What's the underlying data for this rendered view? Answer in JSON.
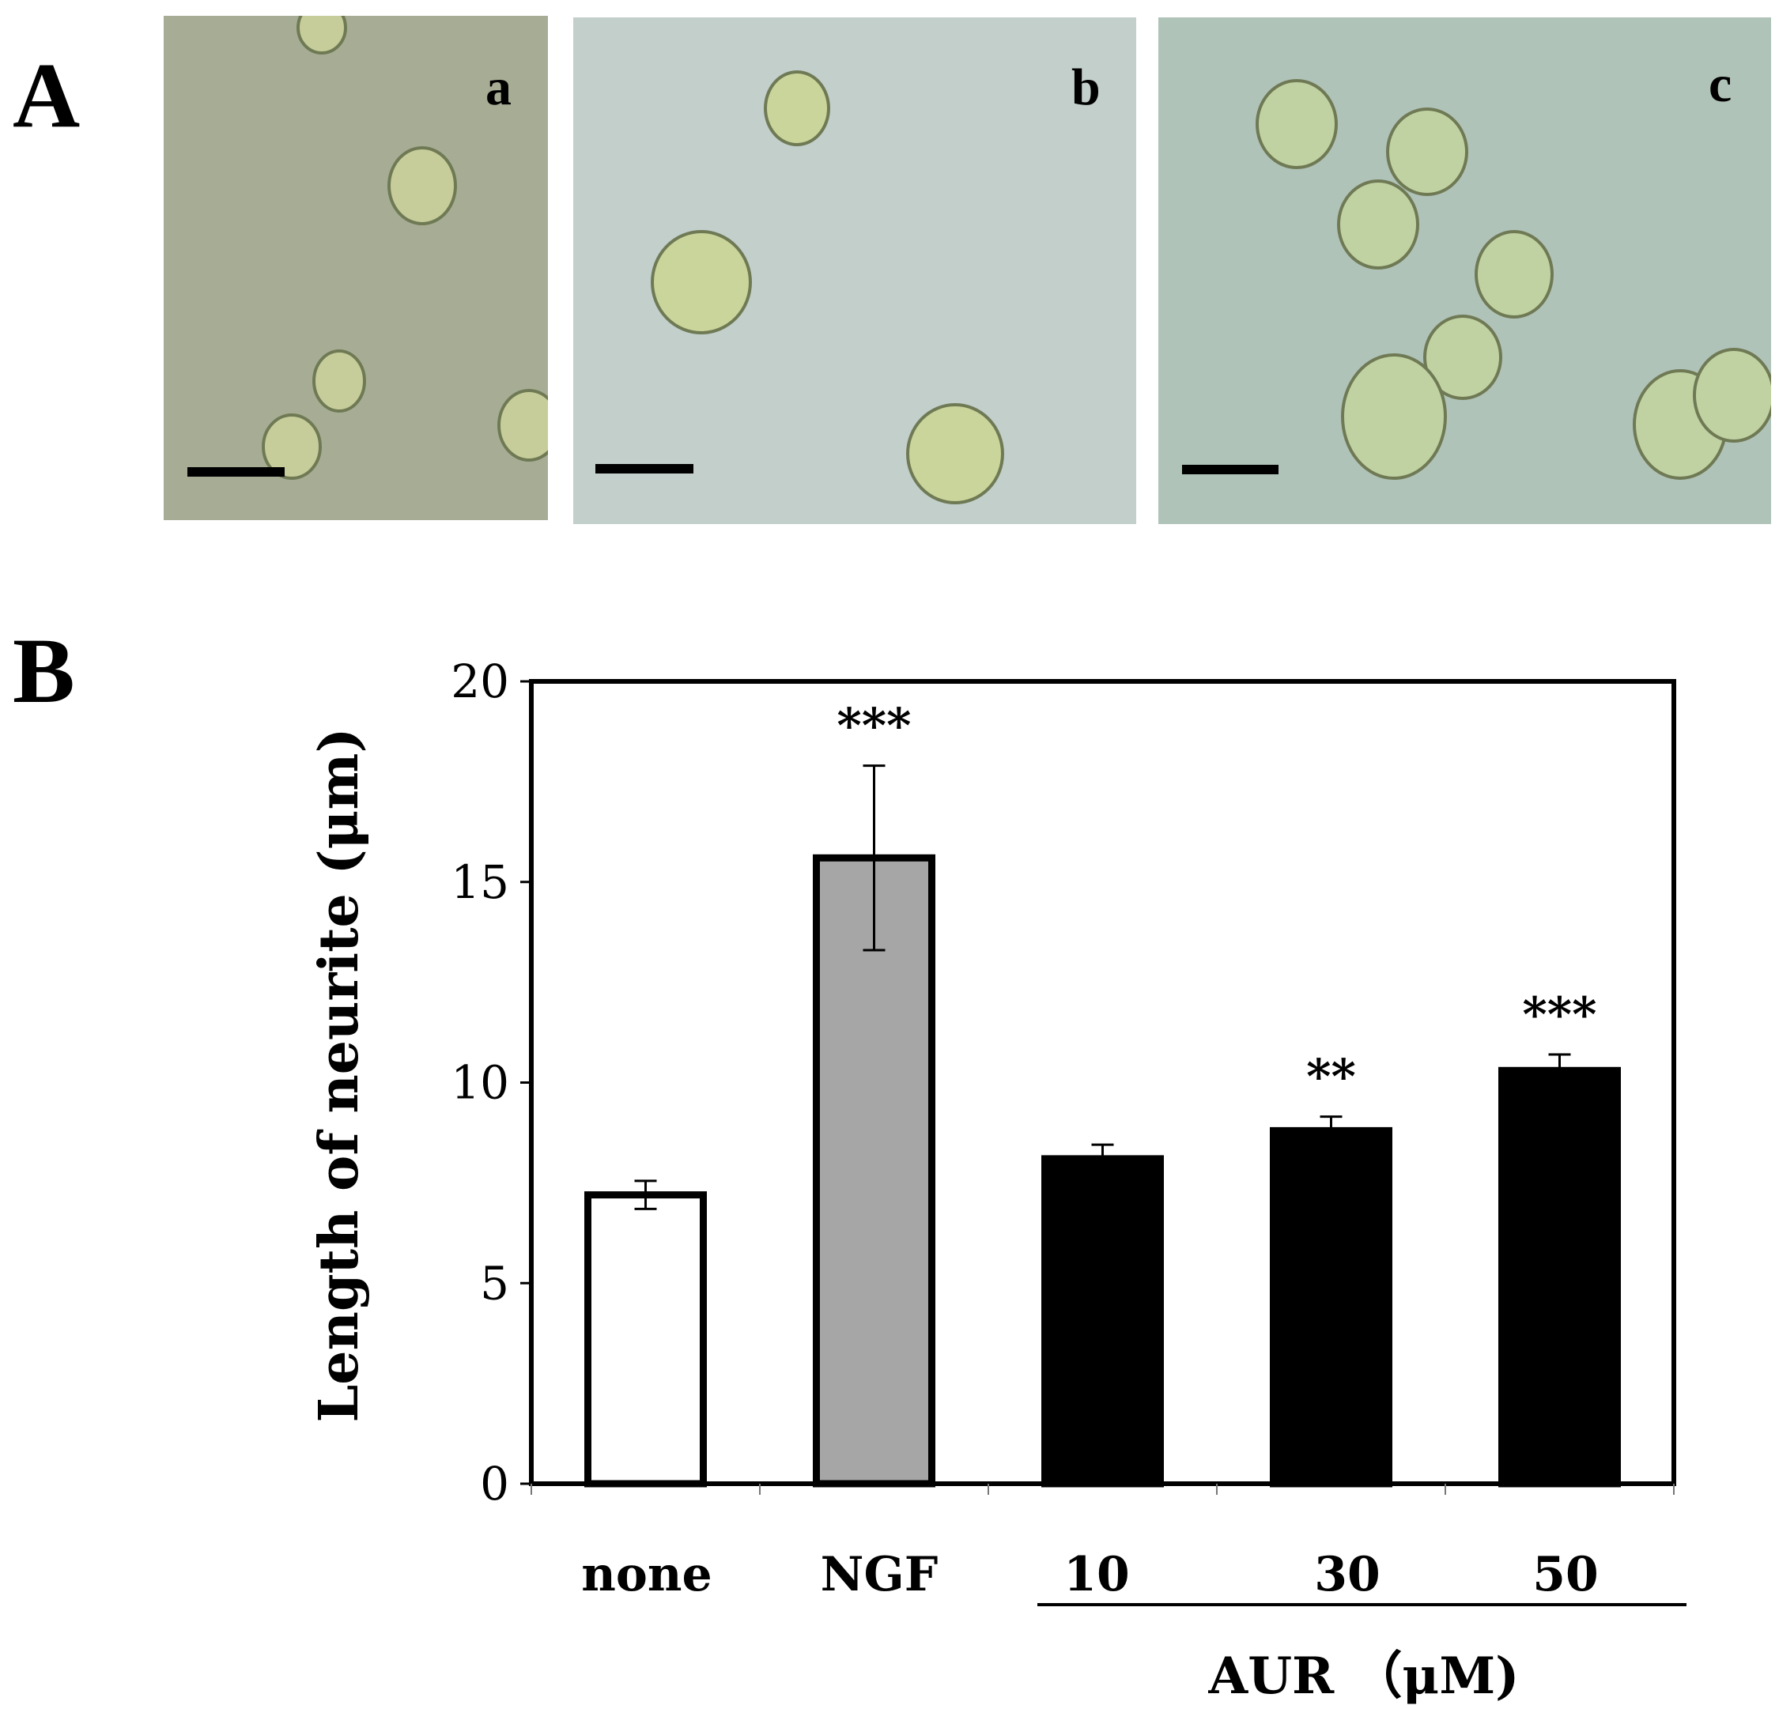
{
  "panels": {
    "A": {
      "label": "A",
      "micrographs": [
        {
          "label": "a",
          "background": "#a7ad94",
          "cell_color": "#c6cd9a"
        },
        {
          "label": "b",
          "background": "#c2cfcb",
          "cell_color": "#c9d59a"
        },
        {
          "label": "c",
          "background": "#b0c3b8",
          "cell_color": "#c0d2a2"
        }
      ]
    },
    "B": {
      "label": "B"
    }
  },
  "chart_data": {
    "type": "bar",
    "categories": [
      "none",
      "NGF",
      "10",
      "30",
      "50"
    ],
    "values": [
      7.2,
      15.6,
      8.1,
      8.8,
      10.3
    ],
    "errors": [
      0.35,
      2.3,
      0.35,
      0.35,
      0.4
    ],
    "significance": [
      "",
      "***",
      "",
      "**",
      "***"
    ],
    "bar_fills": [
      "#ffffff",
      "#a6a6a6",
      "#000000",
      "#000000",
      "#000000"
    ],
    "ylabel": "Length of neurite (μm)",
    "xlabel_group": {
      "label": "AUR （μM)",
      "categories": [
        "10",
        "30",
        "50"
      ]
    },
    "ylim": [
      0,
      20
    ],
    "yticks": [
      "0",
      "5",
      "10",
      "15",
      "20"
    ],
    "ytick_values": [
      0,
      5,
      10,
      15,
      20
    ],
    "grid": false,
    "legend": "none"
  }
}
